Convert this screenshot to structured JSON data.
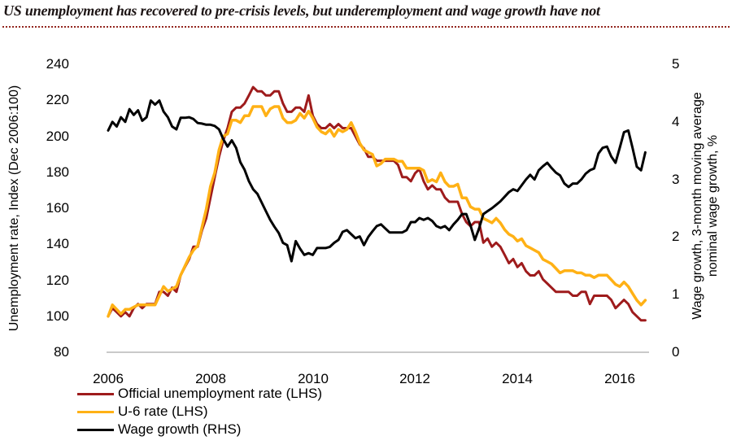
{
  "title": "US unemployment has recovered to pre-crisis levels, but underemployment and wage growth have not",
  "styles": {
    "title_color": "#1c1414",
    "divider_color": "#93261f",
    "axis_line_color": "#c9c9c9",
    "background": "#ffffff"
  },
  "chart_data": {
    "type": "line",
    "title": "US unemployment has recovered to pre-crisis levels, but underemployment and wage growth have not",
    "grid": false,
    "legend_position": "bottom-left",
    "x_start": 2006.0,
    "x_step": 0.0833333,
    "x_end": 2016.5,
    "x_tick_years": [
      2006,
      2008,
      2010,
      2012,
      2014,
      2016
    ],
    "x_tick_labels": [
      "2006",
      "2008",
      "2010",
      "2012",
      "2014",
      "2016"
    ],
    "left_axis": {
      "label": "Unemployment rate, Index (Dec 2006:100)",
      "range": [
        80,
        240
      ],
      "ticks": [
        240,
        220,
        200,
        180,
        160,
        140,
        120,
        100,
        80
      ]
    },
    "right_axis": {
      "label_line1": "Wage growth, 3-month moving average",
      "label_line2": "nominal wage growth, %",
      "range": [
        0,
        5
      ],
      "ticks": [
        5,
        4,
        3,
        2,
        1,
        0
      ]
    },
    "series": [
      {
        "name": "Official unemployment rate (LHS)",
        "axis": "left",
        "color": "#9e1b1c",
        "stroke_width": 3,
        "values": [
          100,
          104.5,
          102.3,
          100,
          102.3,
          100,
          104.5,
          106.8,
          104.5,
          106.8,
          106.8,
          106.8,
          113.6,
          113.6,
          111.4,
          115.9,
          113.6,
          122.7,
          127.3,
          131.8,
          138.6,
          138.6,
          147.7,
          154.5,
          165.9,
          177.3,
          188.6,
          197.7,
          204.5,
          213.6,
          215.9,
          215.9,
          218.2,
          222.7,
          227.3,
          225,
          225,
          222.7,
          222.7,
          225,
          225,
          218.2,
          213.6,
          213.6,
          215.9,
          215.9,
          213.6,
          222.7,
          211.4,
          206.8,
          204.5,
          204.5,
          206.8,
          204.5,
          206.8,
          204.5,
          204.5,
          204.5,
          200,
          195.5,
          193.2,
          188.6,
          188.6,
          186.4,
          186.4,
          186.4,
          186.4,
          186.4,
          184.1,
          177.3,
          177.3,
          175,
          179.5,
          181.8,
          175,
          170.5,
          172.7,
          170.5,
          170.5,
          165.9,
          163.6,
          163.6,
          163.6,
          156.8,
          152.3,
          150,
          152.3,
          152.3,
          140.9,
          143.2,
          138.6,
          140.9,
          138.6,
          134.1,
          129.5,
          131.8,
          127.3,
          129.5,
          125,
          122.7,
          122.7,
          125,
          120.5,
          118.2,
          115.9,
          113.6,
          113.6,
          113.6,
          113.6,
          111.4,
          111.4,
          113.6,
          113.6,
          106.8,
          111.4,
          111.4,
          111.4,
          111.4,
          109.1,
          104.5,
          106.8,
          109.1,
          106.8,
          102.3,
          100,
          97.7,
          97.7
        ]
      },
      {
        "name": "U-6 rate (LHS)",
        "axis": "left",
        "color": "#ffb115",
        "stroke_width": 3.5,
        "values": [
          100,
          106.3,
          103.8,
          101.3,
          103.8,
          103.8,
          105.1,
          106.3,
          106.3,
          106.3,
          106.3,
          106.3,
          111.4,
          116.5,
          113.9,
          115.2,
          116.5,
          122.8,
          127.8,
          132.9,
          136.7,
          139.2,
          149.4,
          159.5,
          172.2,
          179.7,
          192.4,
          200,
          201.3,
          208.9,
          208.9,
          207.6,
          211.4,
          211.4,
          216.5,
          216.5,
          216.5,
          211.4,
          215.2,
          216.5,
          216.5,
          210.1,
          207.6,
          207.6,
          208.9,
          212.7,
          210.1,
          213.9,
          210.1,
          205.1,
          202.5,
          201.3,
          203.8,
          200,
          203.8,
          202.5,
          203.8,
          207.6,
          202.5,
          196.2,
          192.4,
          191.1,
          189.9,
          183.5,
          184.8,
          187.3,
          187.3,
          187.3,
          186.1,
          186.1,
          182.3,
          182.3,
          182.3,
          182.3,
          181,
          174.7,
          175.9,
          174.7,
          179.7,
          174.7,
          172.2,
          172.2,
          173.4,
          165.8,
          165.8,
          160.8,
          159.5,
          159.5,
          154.4,
          153.2,
          151.9,
          154.4,
          151.9,
          148.1,
          145.6,
          144.3,
          141.8,
          143,
          139.2,
          138,
          136.7,
          135.4,
          131.6,
          130.4,
          129.1,
          126.6,
          124.1,
          125.3,
          125.3,
          125.3,
          124.1,
          124.1,
          122.8,
          122.8,
          121.5,
          122.8,
          122.8,
          122.8,
          120.3,
          117.7,
          116.5,
          119,
          116.5,
          112.7,
          108.9,
          106.3,
          108.9
        ]
      },
      {
        "name": "Wage growth (RHS)",
        "axis": "right",
        "color": "#000000",
        "stroke_width": 3,
        "values": [
          3.85,
          4,
          3.92,
          4.08,
          4,
          4.22,
          4.12,
          4.2,
          4.02,
          4.08,
          4.37,
          4.3,
          4.37,
          4.18,
          4.08,
          3.92,
          3.87,
          4.07,
          4.07,
          4.08,
          4.05,
          3.98,
          3.97,
          3.95,
          3.95,
          3.93,
          3.87,
          3.7,
          3.57,
          3.68,
          3.55,
          3.3,
          3.17,
          2.97,
          2.83,
          2.75,
          2.6,
          2.45,
          2.3,
          2.18,
          2.07,
          1.9,
          1.86,
          1.58,
          1.93,
          1.8,
          1.69,
          1.72,
          1.69,
          1.81,
          1.81,
          1.81,
          1.83,
          1.9,
          1.95,
          2.09,
          2.12,
          2.05,
          1.98,
          2.01,
          1.86,
          2,
          2.1,
          2.19,
          2.22,
          2.15,
          2.08,
          2.08,
          2.08,
          2.08,
          2.12,
          2.26,
          2.26,
          2.33,
          2.3,
          2.33,
          2.28,
          2.19,
          2.16,
          2.19,
          2.12,
          2.22,
          2.3,
          2.4,
          2.4,
          2.2,
          1.95,
          2.15,
          2.4,
          2.45,
          2.5,
          2.56,
          2.62,
          2.7,
          2.78,
          2.83,
          2.8,
          2.9,
          3,
          3.08,
          3,
          3.16,
          3.23,
          3.29,
          3.2,
          3.12,
          3.07,
          2.93,
          2.87,
          2.93,
          2.93,
          3,
          3.1,
          3.16,
          3.19,
          3.45,
          3.55,
          3.57,
          3.4,
          3.29,
          3.55,
          3.82,
          3.85,
          3.55,
          3.22,
          3.16,
          3.47
        ]
      }
    ]
  }
}
